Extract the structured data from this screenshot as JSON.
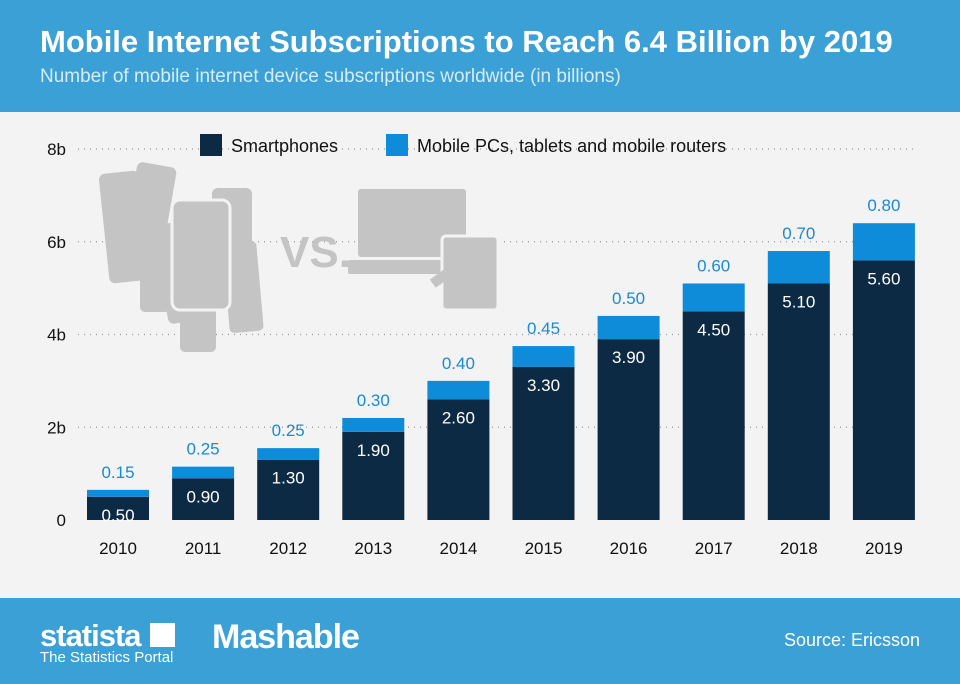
{
  "header": {
    "title": "Mobile Internet Subscriptions to Reach 6.4 Billion by 2019",
    "subtitle": "Number of mobile internet device subscriptions worldwide (in billions)"
  },
  "illustration": {
    "vs_text": "VS."
  },
  "chart_data": {
    "type": "bar",
    "stacked": true,
    "categories": [
      "2010",
      "2011",
      "2012",
      "2013",
      "2014",
      "2015",
      "2016",
      "2017",
      "2018",
      "2019"
    ],
    "series": [
      {
        "name": "Smartphones",
        "color": "#0c2a44",
        "values": [
          0.5,
          0.9,
          1.3,
          1.9,
          2.6,
          3.3,
          3.9,
          4.5,
          5.1,
          5.6
        ],
        "labels": [
          "0.50",
          "0.90",
          "1.30",
          "1.90",
          "2.60",
          "3.30",
          "3.90",
          "4.50",
          "5.10",
          "5.60"
        ]
      },
      {
        "name": "Mobile PCs, tablets and mobile routers",
        "color": "#0e8bd9",
        "values": [
          0.15,
          0.25,
          0.25,
          0.3,
          0.4,
          0.45,
          0.5,
          0.6,
          0.7,
          0.8
        ],
        "labels": [
          "0.15",
          "0.25",
          "0.25",
          "0.30",
          "0.40",
          "0.45",
          "0.50",
          "0.60",
          "0.70",
          "0.80"
        ]
      }
    ],
    "yticks": [
      {
        "v": 0,
        "label": "0"
      },
      {
        "v": 2,
        "label": "2b"
      },
      {
        "v": 4,
        "label": "4b"
      },
      {
        "v": 6,
        "label": "6b"
      },
      {
        "v": 8,
        "label": "8b"
      }
    ],
    "ylim": [
      0,
      8
    ],
    "grid": true,
    "legend": "top"
  },
  "footer": {
    "brand": "statista",
    "brand_sub": "The Statistics Portal",
    "partner": "Mashable",
    "source": "Source: Ericsson"
  }
}
